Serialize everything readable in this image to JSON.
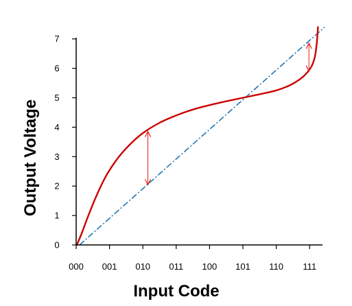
{
  "chart_data": {
    "type": "line",
    "xlabel": "Input Code",
    "ylabel": "Output Voltage",
    "categories": [
      "000",
      "001",
      "010",
      "011",
      "100",
      "101",
      "110",
      "111"
    ],
    "x_range": [
      0,
      7.45
    ],
    "ylim": [
      0,
      7.45
    ],
    "yticks": [
      0,
      1,
      2,
      3,
      4,
      5,
      6,
      7
    ],
    "grid": false,
    "legend": "none",
    "series": [
      {
        "role": "actual",
        "style": "solid",
        "color": "#cc0000",
        "points": [
          [
            0.02,
            0.0
          ],
          [
            0.15,
            0.35
          ],
          [
            0.35,
            0.95
          ],
          [
            0.6,
            1.65
          ],
          [
            0.9,
            2.35
          ],
          [
            1.25,
            2.95
          ],
          [
            1.6,
            3.4
          ],
          [
            2.0,
            3.8
          ],
          [
            2.5,
            4.15
          ],
          [
            3.0,
            4.4
          ],
          [
            3.5,
            4.6
          ],
          [
            4.0,
            4.75
          ],
          [
            4.5,
            4.88
          ],
          [
            5.0,
            5.0
          ],
          [
            5.5,
            5.12
          ],
          [
            6.0,
            5.25
          ],
          [
            6.4,
            5.42
          ],
          [
            6.7,
            5.62
          ],
          [
            6.9,
            5.82
          ],
          [
            7.05,
            6.05
          ],
          [
            7.15,
            6.35
          ],
          [
            7.2,
            6.7
          ],
          [
            7.23,
            7.05
          ],
          [
            7.25,
            7.4
          ]
        ]
      },
      {
        "role": "ideal",
        "style": "dash-dot",
        "color": "#1f77b4",
        "points": [
          [
            0.1,
            0.0
          ],
          [
            7.45,
            7.4
          ]
        ]
      }
    ],
    "annotations": [
      {
        "type": "double-arrow",
        "color": "#e0201a",
        "x": 2.15,
        "y_from": 3.88,
        "y_to": 2.02
      },
      {
        "type": "double-arrow",
        "color": "#e0201a",
        "x": 6.98,
        "y_from": 6.88,
        "y_to": 5.88
      }
    ]
  }
}
